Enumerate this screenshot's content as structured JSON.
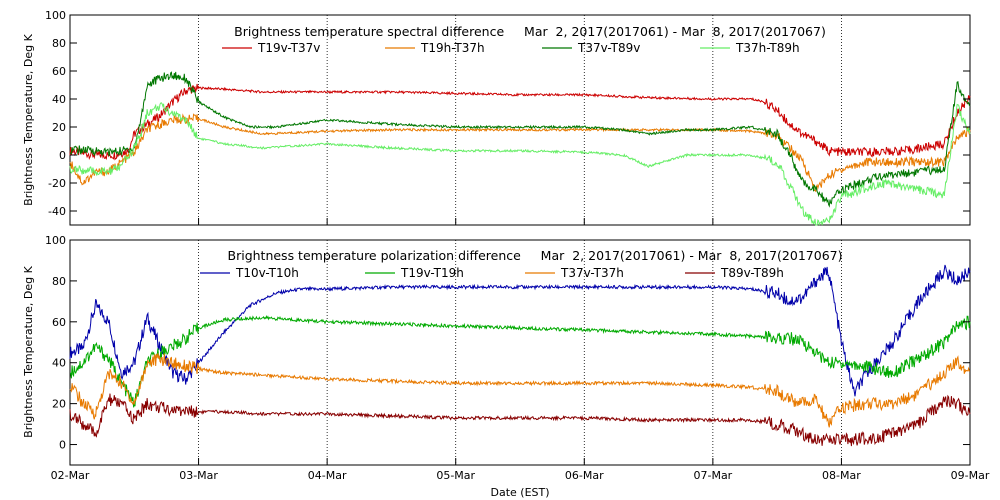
{
  "chart_data": [
    {
      "type": "line",
      "title": "Brightness temperature spectral difference     Mar  2, 2017(2017061) - Mar  8, 2017(2017067)",
      "ylabel": "Brightness Temperature, Deg K",
      "xlim": [
        0,
        7
      ],
      "ylim": [
        -50,
        100
      ],
      "yticks": [
        -40,
        -20,
        0,
        20,
        40,
        60,
        80,
        100
      ],
      "grid": "vertical dotted lines at day boundaries",
      "legend": "top, inside plot",
      "series": [
        {
          "name": "T19v-T37v",
          "color": "#cc0000",
          "x": [
            0,
            0.2,
            0.35,
            0.45,
            0.5,
            0.6,
            0.7,
            0.8,
            0.9,
            1.0,
            1.2,
            1.5,
            2.0,
            2.5,
            3.0,
            3.5,
            4.0,
            4.5,
            5.0,
            5.3,
            5.4,
            5.5,
            5.6,
            5.7,
            5.8,
            5.9,
            6.0,
            6.2,
            6.5,
            6.8,
            6.9,
            7.0
          ],
          "y": [
            3,
            0,
            0,
            3,
            15,
            22,
            28,
            38,
            46,
            48,
            47,
            45,
            45,
            45,
            44,
            43,
            43,
            41,
            40,
            40,
            38,
            32,
            22,
            15,
            10,
            3,
            2,
            2,
            3,
            8,
            30,
            42
          ]
        },
        {
          "name": "T19h-T37h",
          "color": "#e87a00",
          "x": [
            0,
            0.1,
            0.2,
            0.3,
            0.4,
            0.5,
            0.6,
            0.7,
            0.8,
            1.0,
            1.2,
            1.5,
            2.0,
            2.5,
            3.0,
            3.5,
            4.0,
            4.5,
            5.0,
            5.3,
            5.5,
            5.6,
            5.7,
            5.8,
            5.9,
            6.0,
            6.2,
            6.5,
            6.8,
            6.9,
            7.0
          ],
          "y": [
            -5,
            -20,
            -12,
            -12,
            -5,
            2,
            18,
            22,
            25,
            26,
            20,
            15,
            17,
            18,
            18,
            18,
            18,
            18,
            18,
            17,
            14,
            5,
            -5,
            -25,
            -15,
            -10,
            -5,
            -5,
            -5,
            12,
            18
          ]
        },
        {
          "name": "T37v-T89v",
          "color": "#007700",
          "x": [
            0,
            0.2,
            0.3,
            0.4,
            0.5,
            0.55,
            0.6,
            0.7,
            0.8,
            0.9,
            1.0,
            1.2,
            1.4,
            1.6,
            2.0,
            2.5,
            3.0,
            3.5,
            4.0,
            4.3,
            4.5,
            4.8,
            5.0,
            5.3,
            5.5,
            5.6,
            5.7,
            5.8,
            5.9,
            6.0,
            6.3,
            6.6,
            6.8,
            6.9,
            7.0
          ],
          "y": [
            4,
            3,
            2,
            3,
            5,
            25,
            50,
            55,
            57,
            55,
            38,
            27,
            20,
            20,
            25,
            22,
            20,
            20,
            20,
            18,
            15,
            18,
            18,
            20,
            15,
            0,
            -20,
            -25,
            -35,
            -25,
            -15,
            -12,
            -10,
            50,
            35
          ]
        },
        {
          "name": "T37h-T89h",
          "color": "#66ee66",
          "x": [
            0,
            0.2,
            0.3,
            0.4,
            0.5,
            0.55,
            0.6,
            0.7,
            0.8,
            0.9,
            1.0,
            1.2,
            1.5,
            2.0,
            2.5,
            3.0,
            3.5,
            4.0,
            4.3,
            4.5,
            4.8,
            5.0,
            5.3,
            5.5,
            5.6,
            5.7,
            5.8,
            5.9,
            6.0,
            6.3,
            6.6,
            6.8,
            6.9,
            7.0
          ],
          "y": [
            -10,
            -12,
            -12,
            -8,
            5,
            15,
            30,
            35,
            30,
            25,
            12,
            8,
            5,
            8,
            5,
            3,
            3,
            2,
            0,
            -8,
            0,
            0,
            0,
            -5,
            -22,
            -40,
            -48,
            -48,
            -30,
            -20,
            -25,
            -28,
            35,
            15
          ]
        }
      ]
    },
    {
      "type": "line",
      "title": "Brightness temperature polarization difference     Mar  2, 2017(2017061) - Mar  8, 2017(2017067)",
      "ylabel": "Brightness Temperature, Deg K",
      "xlabel": "Date (EST)",
      "categories": [
        "02-Mar",
        "03-Mar",
        "04-Mar",
        "05-Mar",
        "06-Mar",
        "07-Mar",
        "08-Mar",
        "09-Mar"
      ],
      "xlim": [
        0,
        7
      ],
      "ylim": [
        -10,
        100
      ],
      "yticks": [
        0,
        20,
        40,
        60,
        80,
        100
      ],
      "grid": "vertical dotted lines at day boundaries",
      "legend": "top, inside plot",
      "series": [
        {
          "name": "T10v-T10h",
          "color": "#0000aa",
          "x": [
            0,
            0.1,
            0.2,
            0.3,
            0.4,
            0.5,
            0.6,
            0.7,
            0.8,
            0.9,
            1.0,
            1.2,
            1.4,
            1.6,
            1.8,
            2.0,
            2.5,
            3.0,
            3.5,
            4.0,
            4.5,
            5.0,
            5.3,
            5.5,
            5.6,
            5.7,
            5.8,
            5.9,
            6.0,
            6.1,
            6.2,
            6.4,
            6.6,
            6.8,
            6.9,
            7.0
          ],
          "y": [
            45,
            47,
            68,
            60,
            35,
            40,
            62,
            48,
            35,
            32,
            40,
            55,
            68,
            74,
            76,
            76,
            77,
            77,
            77,
            77,
            77,
            77,
            76,
            74,
            70,
            72,
            80,
            85,
            50,
            25,
            35,
            50,
            70,
            85,
            80,
            85
          ]
        },
        {
          "name": "T19v-T19h",
          "color": "#00aa00",
          "x": [
            0,
            0.1,
            0.2,
            0.3,
            0.4,
            0.5,
            0.6,
            0.7,
            0.8,
            0.9,
            1.0,
            1.2,
            1.5,
            2.0,
            2.5,
            3.0,
            3.5,
            4.0,
            4.5,
            5.0,
            5.3,
            5.5,
            5.6,
            5.7,
            5.8,
            5.9,
            6.0,
            6.2,
            6.4,
            6.6,
            6.8,
            6.9,
            7.0
          ],
          "y": [
            35,
            40,
            48,
            42,
            30,
            20,
            40,
            45,
            48,
            52,
            57,
            61,
            62,
            60,
            59,
            58,
            57,
            56,
            55,
            54,
            53,
            52,
            52,
            50,
            45,
            40,
            40,
            38,
            35,
            42,
            50,
            58,
            60
          ]
        },
        {
          "name": "T37v-T37h",
          "color": "#e87a00",
          "x": [
            0,
            0.1,
            0.2,
            0.3,
            0.4,
            0.5,
            0.6,
            0.7,
            0.8,
            1.0,
            1.2,
            1.5,
            2.0,
            2.5,
            3.0,
            3.5,
            4.0,
            4.5,
            5.0,
            5.3,
            5.5,
            5.6,
            5.7,
            5.8,
            5.9,
            6.0,
            6.2,
            6.4,
            6.6,
            6.8,
            6.9,
            7.0
          ],
          "y": [
            30,
            20,
            15,
            35,
            30,
            20,
            40,
            42,
            40,
            37,
            35,
            34,
            32,
            31,
            30,
            30,
            30,
            30,
            29,
            28,
            26,
            22,
            20,
            22,
            10,
            18,
            20,
            20,
            25,
            35,
            40,
            36
          ]
        },
        {
          "name": "T89v-T89h",
          "color": "#880000",
          "x": [
            0,
            0.1,
            0.2,
            0.3,
            0.4,
            0.5,
            0.6,
            0.7,
            0.8,
            1.0,
            1.2,
            1.5,
            2.0,
            2.5,
            3.0,
            3.5,
            4.0,
            4.5,
            5.0,
            5.3,
            5.5,
            5.6,
            5.7,
            5.8,
            5.9,
            6.0,
            6.2,
            6.4,
            6.6,
            6.8,
            6.9,
            7.0
          ],
          "y": [
            15,
            10,
            5,
            22,
            20,
            12,
            20,
            18,
            17,
            16,
            16,
            15,
            15,
            14,
            13,
            13,
            13,
            12,
            12,
            12,
            10,
            8,
            5,
            3,
            2,
            2,
            3,
            5,
            10,
            22,
            20,
            15
          ]
        }
      ]
    }
  ]
}
